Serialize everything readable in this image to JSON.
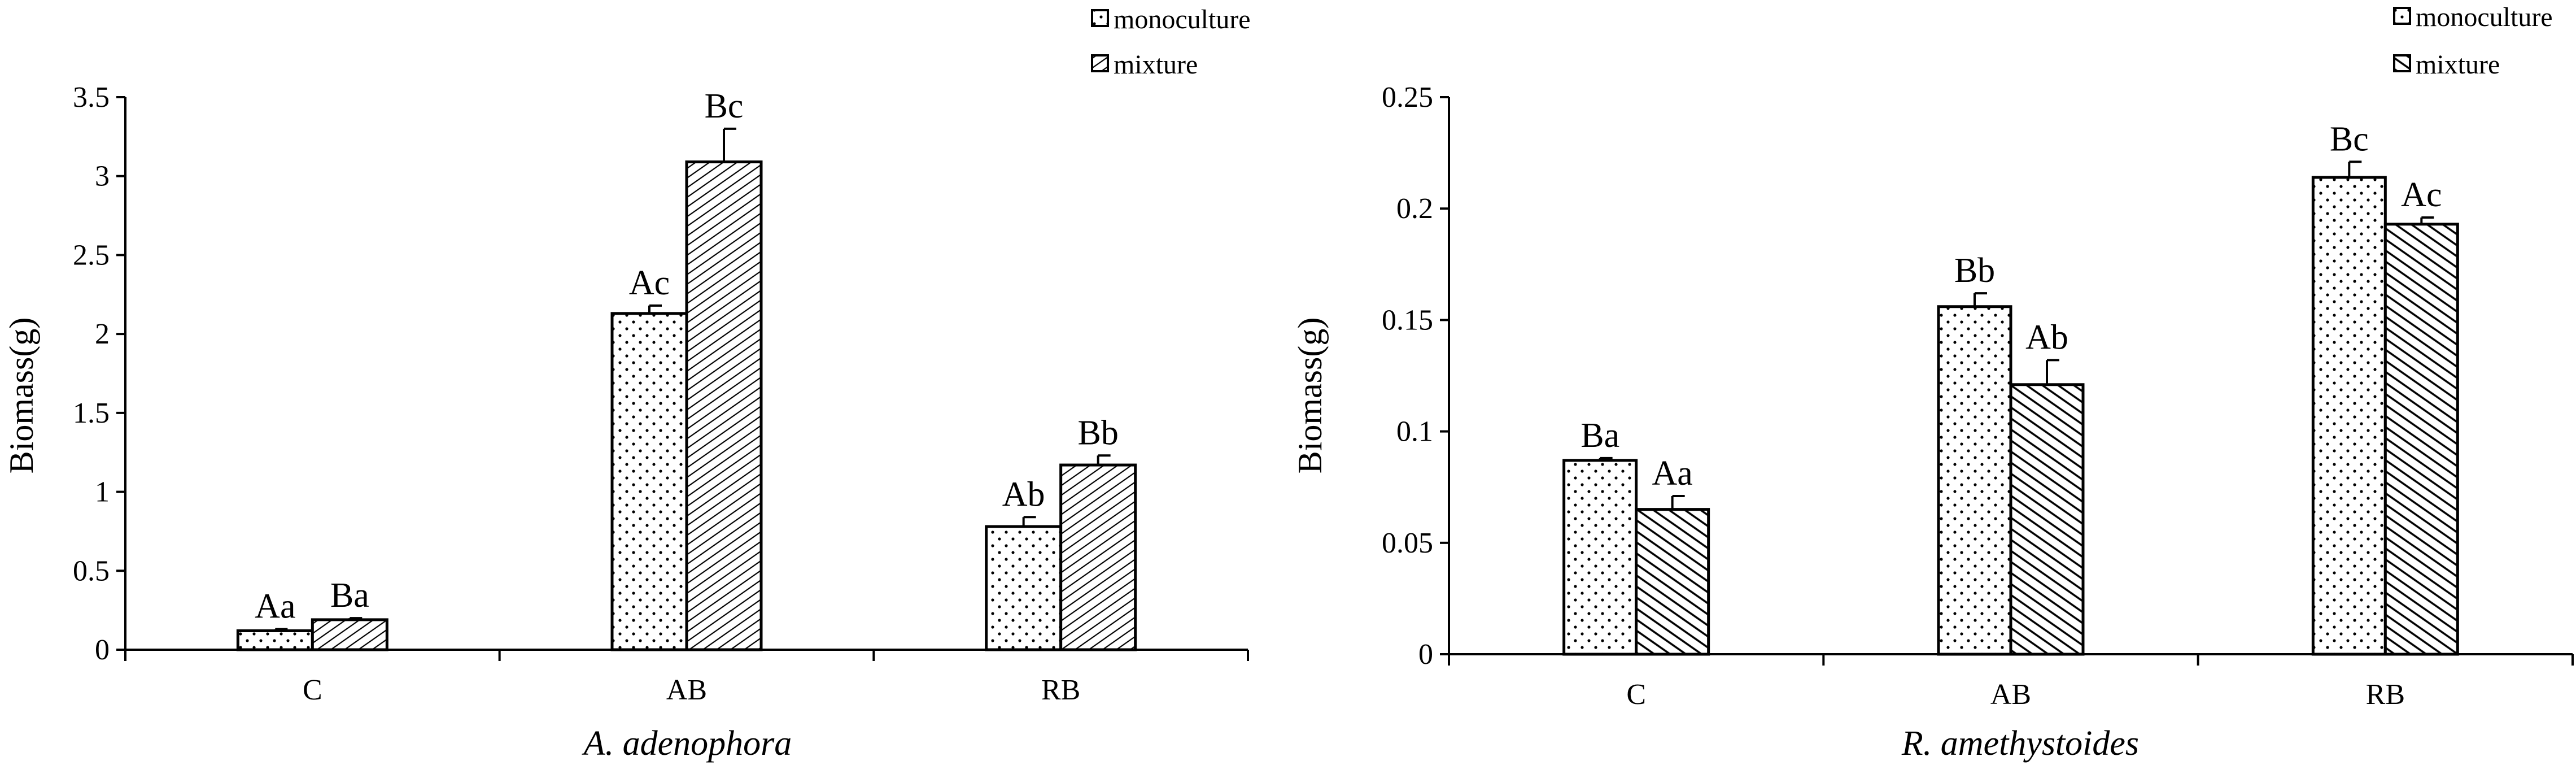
{
  "chart_data": [
    {
      "type": "bar",
      "categories": [
        "C",
        "AB",
        "RB"
      ],
      "series": [
        {
          "name": "monoculture",
          "values": [
            0.12,
            2.13,
            0.78
          ],
          "errors": [
            0.01,
            0.05,
            0.06
          ],
          "labels": [
            "Aa",
            "Ac",
            "Ab"
          ]
        },
        {
          "name": "mixture",
          "values": [
            0.19,
            3.09,
            1.17
          ],
          "errors": [
            0.01,
            0.21,
            0.06
          ],
          "labels": [
            "Ba",
            "Bc",
            "Bb"
          ]
        }
      ],
      "ylabel": "Biomass(g)",
      "xlabel": "A. adenophora",
      "ylim": [
        0,
        3.5
      ],
      "yticks": [
        "0",
        "0.5",
        "1",
        "1.5",
        "2",
        "2.5",
        "3",
        "3.5"
      ],
      "grid": false,
      "legend_position": "top-right"
    },
    {
      "type": "bar",
      "categories": [
        "C",
        "AB",
        "RB"
      ],
      "series": [
        {
          "name": "monoculture",
          "values": [
            0.087,
            0.156,
            0.214
          ],
          "errors": [
            0.001,
            0.006,
            0.007
          ],
          "labels": [
            "Ba",
            "Bb",
            "Bc"
          ]
        },
        {
          "name": "mixture",
          "values": [
            0.065,
            0.121,
            0.193
          ],
          "errors": [
            0.006,
            0.011,
            0.003
          ],
          "labels": [
            "Aa",
            "Ab",
            "Ac"
          ]
        }
      ],
      "ylabel": "Biomass(g)",
      "xlabel": "R. amethystoides",
      "ylim": [
        0,
        0.25
      ],
      "yticks": [
        "0",
        "0.05",
        "0.1",
        "0.15",
        "0.2",
        "0.25"
      ],
      "grid": false,
      "legend_position": "top-right"
    }
  ],
  "colors": {
    "axis": "#000000",
    "bar_fill": "#ffffff",
    "pattern": "#000000"
  }
}
